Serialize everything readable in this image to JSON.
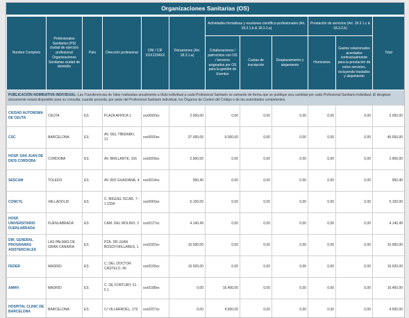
{
  "header": {
    "title": "Organizaciones Sanitarias (OS)"
  },
  "columns": {
    "name": "Nombre Completo",
    "city": "Profesionales Sanitarios (PS) ciudad de ejercicio profesional Organizaciones Sanitarias ciudad de domicilio",
    "country": "País",
    "address": "Dirección profesional",
    "id": "DNI / CIF XXX1234XX",
    "donations": "Donaciones (Art. 18.3.1.a)",
    "training_group": "Actividades formativas y reuniones científico-profesionales (Art. 18.3.1.b & 18.3.2.a)",
    "collab": "Colaboraciones / patrocinios con OS / terceros asignados por OS para la gestión de Eventos",
    "fees": "Cuotas de inscripción",
    "travel": "Desplazamiento y alojamiento",
    "services_group": "Prestación de servicios (Art. 18.3.1.c & 18.3.2.b)",
    "honoraria": "Honorarios",
    "expenses": "Gastos relacionados acordados contractualmente para la prestación de estos servicios, incluyendo traslados y alojamiento",
    "total": "Total"
  },
  "note": {
    "label": "PUBLICACIÓN NOMINATIVA INDIVIDUAL:",
    "text": "Las Transferencias de Valor realizadas anualmente a título individual a cada Profesional Sanitario se sumarán de forma que se publique una cantidad por cada Profesional Sanitario individual. El desglose únicamente estará disponible para su consulta, cuando proceda, por parte del Profesional Sanitario individual, los Órganos de Control del Código o de las autoridades competentes."
  },
  "table": {
    "rows": [
      [
        "CIUDAD AUTONOMA DE CEUTA",
        "CEUTA",
        "ES",
        "PLAZA AFRICA 1",
        "xxx0000xx",
        "2.000,00",
        "0,00",
        "0,00",
        "0,00",
        "0,00",
        "0,00",
        "2.000,00"
      ],
      [
        "CSC",
        "BARCELONA",
        "ES",
        "AV. DEL TIBIDABO, 21",
        "xxx0000xx",
        "37.000,00",
        "9.000,00",
        "0,00",
        "0,00",
        "0,00",
        "0,00",
        "46.000,00"
      ],
      [
        "HOSP. SAN JUAN DE DIOS CORDOBA",
        "CORDOBA",
        "ES",
        "AV. BRILLANTE, 106",
        "xxx0009xx",
        "2.900,00",
        "0,00",
        "0,00",
        "0,00",
        "0,00",
        "0,00",
        "2.900,00"
      ],
      [
        "SESCAM",
        "TOLEDO",
        "ES",
        "AV. RIO GUADIANA, 4",
        "xxx0014xx",
        "950,40",
        "0,00",
        "0,00",
        "0,00",
        "0,00",
        "0,00",
        "950,40"
      ],
      [
        "CONCYL",
        "VALLADOLID",
        "ES",
        "C. MIGUEL ISCAR, 7 - 1 IZDA",
        "xxx0060xx",
        "5.100,00",
        "0,00",
        "0,00",
        "0,00",
        "0,00",
        "0,00",
        "5.100,00"
      ],
      [
        "HOSP. UNIVERSITARIO FUENLABRADA",
        "FUENLABRADA",
        "ES",
        "CAM. DEL MOLINO, 2",
        "xxx0127xx",
        "4.140,49",
        "0,00",
        "0,00",
        "0,00",
        "0,00",
        "0,00",
        "4.140,49"
      ],
      [
        "DIR. GENERAL PROGRAMAS ASISTENCIALES",
        "LAS PALMAS DE GRAN CANARIA",
        "ES",
        "PZA. DR JUAN BOSCH MILLARES, 1",
        "xxx0182xx",
        "10.000,00",
        "0,00",
        "0,00",
        "0,00",
        "0,00",
        "0,00",
        "10.000,00"
      ],
      [
        "FEDER",
        "MADRID",
        "ES",
        "C. DEL DOCTOR CASTELO, 49",
        "xxx0165xx",
        "16.920,00",
        "0,00",
        "0,00",
        "0,00",
        "0,00",
        "0,00",
        "16.920,00"
      ],
      [
        "AMHH",
        "MADRID",
        "ES",
        "C. DE FORTUNY, 51 - 5 1",
        "xxx0188xx",
        "0,00",
        "16.400,00",
        "0,00",
        "0,00",
        "0,00",
        "0,00",
        "16.400,00"
      ],
      [
        "HOSPITAL CLINIC DE BARCELONA",
        "BARCELONA",
        "ES",
        "C/ VILLARROEL, 170",
        "xxx0207xx",
        "0,00",
        "4.500,00",
        "0,00",
        "0,00",
        "0,00",
        "0,00",
        "4.500,00"
      ]
    ]
  }
}
